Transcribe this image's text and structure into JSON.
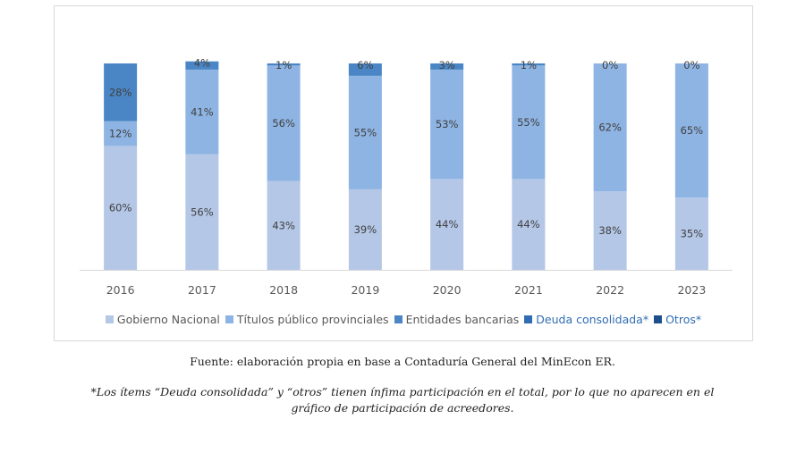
{
  "chart_data": {
    "type": "bar",
    "stacked": true,
    "percent_stacked": true,
    "categories": [
      "2016",
      "2017",
      "2018",
      "2019",
      "2020",
      "2021",
      "2022",
      "2023"
    ],
    "series": [
      {
        "name": "Gobierno Nacional",
        "color": "#b4c7e7",
        "values": [
          60,
          56,
          43,
          39,
          44,
          44,
          38,
          35
        ],
        "labels": [
          "60%",
          "56%",
          "43%",
          "39%",
          "44%",
          "44%",
          "38%",
          "35%"
        ]
      },
      {
        "name": "Títulos público provinciales",
        "color": "#8eb4e3",
        "values": [
          12,
          41,
          56,
          55,
          53,
          55,
          62,
          65
        ],
        "labels": [
          "12%",
          "41%",
          "56%",
          "55%",
          "53%",
          "55%",
          "62%",
          "65%"
        ]
      },
      {
        "name": "Entidades bancarias",
        "color": "#4a86c5",
        "values": [
          28,
          4,
          1,
          6,
          3,
          1,
          0,
          0
        ],
        "labels": [
          "28%",
          "4%",
          "1%",
          "6%",
          "3%",
          "1%",
          "0%",
          "0%"
        ]
      },
      {
        "name": "Deuda consolidada*",
        "color": "#2f6cb3",
        "values": [
          0,
          0,
          0,
          0,
          0,
          0,
          0,
          0
        ],
        "labels": []
      },
      {
        "name": "Otros*",
        "color": "#1f4e8c",
        "values": [
          0,
          0,
          0,
          0,
          0,
          0,
          0,
          0
        ],
        "labels": []
      }
    ],
    "ylim": [
      0,
      100
    ],
    "grid": false,
    "legend_position": "bottom"
  },
  "source_note": "Fuente: elaboración propia en base a Contaduría General del MinEcon ER.",
  "footnote": "*Los ítems “Deuda consolidada” y “otros” tienen ínfima participación en el total, por lo que no aparecen en el gráfico de participación de acreedores."
}
